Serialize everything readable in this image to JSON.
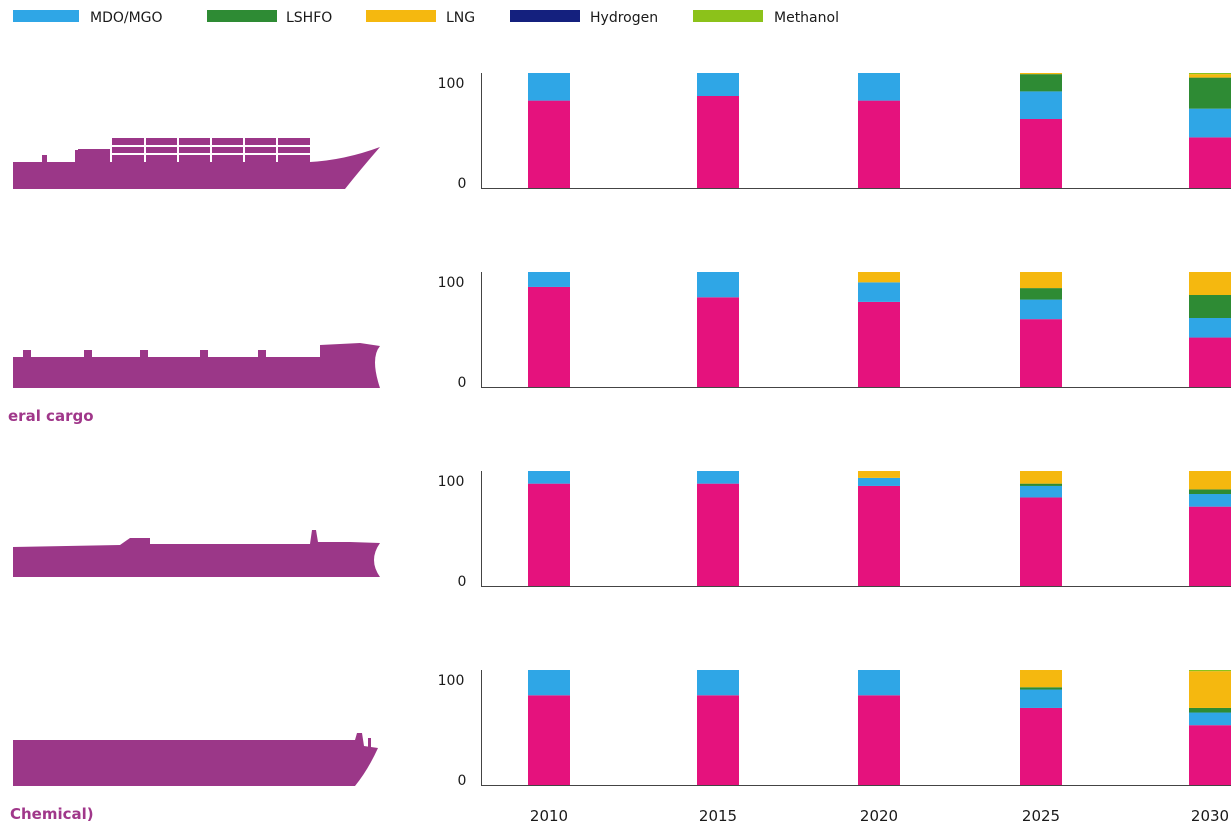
{
  "chart_data": {
    "type": "bar",
    "stacked": true,
    "legend": {
      "placement": "top-left",
      "entries": [
        {
          "name": "MDO/MGO",
          "color": "#2fa6e6"
        },
        {
          "name": "LSHFO",
          "color": "#2e8b34"
        },
        {
          "name": "LNG",
          "color": "#f5b80f"
        },
        {
          "name": "Hydrogen",
          "color": "#14207e"
        },
        {
          "name": "Methanol",
          "color": "#8cc21a"
        }
      ]
    },
    "categories": [
      "2010",
      "2015",
      "2020",
      "2025",
      "2030"
    ],
    "base_color": "#e5127d",
    "ship_color": "#9b3788",
    "panels": [
      {
        "label": "",
        "ytick_labels": [
          "100",
          "0"
        ],
        "ylim": [
          0,
          100
        ],
        "stacks": [
          {
            "base": 76,
            "MDO/MGO": 24,
            "LSHFO": 0,
            "LNG": 0,
            "Hydrogen": 0,
            "Methanol": 0
          },
          {
            "base": 80,
            "MDO/MGO": 20,
            "LSHFO": 0,
            "LNG": 0,
            "Hydrogen": 0,
            "Methanol": 0
          },
          {
            "base": 76,
            "MDO/MGO": 24,
            "LSHFO": 0,
            "LNG": 0,
            "Hydrogen": 0,
            "Methanol": 0
          },
          {
            "base": 60,
            "MDO/MGO": 24,
            "LSHFO": 15,
            "LNG": 1,
            "Hydrogen": 0,
            "Methanol": 0
          },
          {
            "base": 44,
            "MDO/MGO": 25,
            "LSHFO": 27,
            "LNG": 3,
            "Hydrogen": 0,
            "Methanol": 1
          }
        ]
      },
      {
        "label": "eral cargo",
        "ytick_labels": [
          "100",
          "0"
        ],
        "ylim": [
          0,
          100
        ],
        "stacks": [
          {
            "base": 87,
            "MDO/MGO": 13,
            "LSHFO": 0,
            "LNG": 0,
            "Hydrogen": 0,
            "Methanol": 0
          },
          {
            "base": 78,
            "MDO/MGO": 22,
            "LSHFO": 0,
            "LNG": 0,
            "Hydrogen": 0,
            "Methanol": 0
          },
          {
            "base": 74,
            "MDO/MGO": 17,
            "LSHFO": 0,
            "LNG": 9,
            "Hydrogen": 0,
            "Methanol": 0
          },
          {
            "base": 59,
            "MDO/MGO": 17,
            "LSHFO": 10,
            "LNG": 14,
            "Hydrogen": 0,
            "Methanol": 0
          },
          {
            "base": 43,
            "MDO/MGO": 17,
            "LSHFO": 20,
            "LNG": 20,
            "Hydrogen": 0,
            "Methanol": 0
          }
        ]
      },
      {
        "label": "",
        "ytick_labels": [
          "100",
          "0"
        ],
        "ylim": [
          0,
          100
        ],
        "stacks": [
          {
            "base": 89,
            "MDO/MGO": 11,
            "LSHFO": 0,
            "LNG": 0,
            "Hydrogen": 0,
            "Methanol": 0
          },
          {
            "base": 89,
            "MDO/MGO": 11,
            "LSHFO": 0,
            "LNG": 0,
            "Hydrogen": 0,
            "Methanol": 0
          },
          {
            "base": 87,
            "MDO/MGO": 7,
            "LSHFO": 0,
            "LNG": 6,
            "Hydrogen": 0,
            "Methanol": 0
          },
          {
            "base": 77,
            "MDO/MGO": 10,
            "LSHFO": 2,
            "LNG": 11,
            "Hydrogen": 0,
            "Methanol": 0
          },
          {
            "base": 69,
            "MDO/MGO": 11,
            "LSHFO": 4,
            "LNG": 16,
            "Hydrogen": 0,
            "Methanol": 0
          }
        ]
      },
      {
        "label": "Chemical)",
        "ytick_labels": [
          "100",
          "0"
        ],
        "ylim": [
          0,
          100
        ],
        "stacks": [
          {
            "base": 78,
            "MDO/MGO": 22,
            "LSHFO": 0,
            "LNG": 0,
            "Hydrogen": 0,
            "Methanol": 0
          },
          {
            "base": 78,
            "MDO/MGO": 22,
            "LSHFO": 0,
            "LNG": 0,
            "Hydrogen": 0,
            "Methanol": 0
          },
          {
            "base": 78,
            "MDO/MGO": 22,
            "LSHFO": 0,
            "LNG": 0,
            "Hydrogen": 0,
            "Methanol": 0
          },
          {
            "base": 67,
            "MDO/MGO": 16,
            "LSHFO": 2,
            "LNG": 15,
            "Hydrogen": 0,
            "Methanol": 0
          },
          {
            "base": 52,
            "MDO/MGO": 11,
            "LSHFO": 4,
            "LNG": 32,
            "Hydrogen": 0,
            "Methanol": 1
          }
        ]
      }
    ]
  }
}
